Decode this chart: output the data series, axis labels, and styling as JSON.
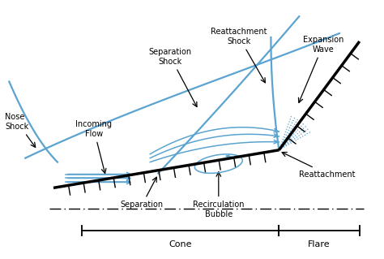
{
  "bg_color": "#ffffff",
  "line_color": "#000000",
  "blue_color": "#5ba3d0",
  "cone_label": "Cone",
  "flare_label": "Flare",
  "labels": {
    "nose_shock": "Nose\nShock",
    "incoming_flow": "Incoming\nFlow",
    "separation_shock": "Separation\nShock",
    "reattachment_shock": "Reattachment\nShock",
    "expansion_wave": "Expansion\nWave",
    "separation": "Separation",
    "recirculation_bubble": "Recirculation\nBubble",
    "reattachment": "Reattachment"
  }
}
